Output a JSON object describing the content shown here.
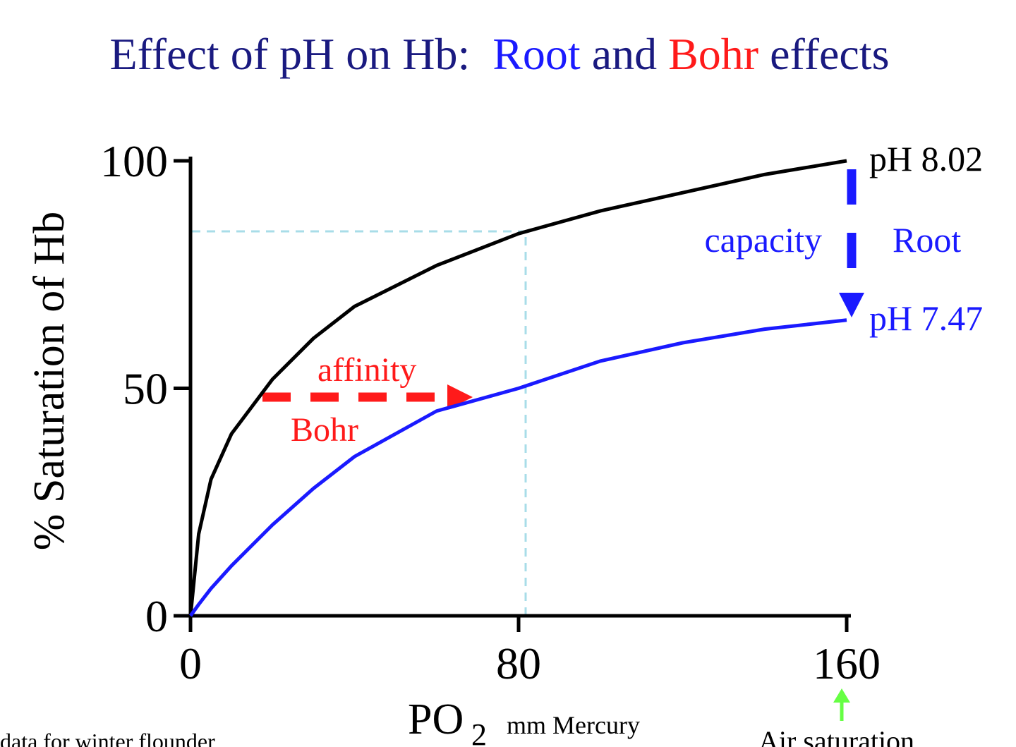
{
  "chart_data": {
    "type": "line",
    "title": [
      "Effect of pH on Hb:  ",
      "Root",
      " and ",
      "Bohr",
      " effects"
    ],
    "title_colors": [
      "#1a1a80",
      "#1a1aff",
      "#1a1a80",
      "#ff1a1a",
      "#1a1a80"
    ],
    "x_label": "PO",
    "x_label_subscript": "2",
    "x_label_units": "mm Mercury",
    "y_label": "% Saturation of Hb",
    "x": [
      0,
      2,
      5,
      10,
      20,
      30,
      40,
      60,
      80,
      100,
      120,
      140,
      160
    ],
    "series": [
      {
        "name": "pH 8.02",
        "color": "#000000",
        "values": [
          0,
          18,
          30,
          40,
          52,
          61,
          68,
          77,
          84,
          89,
          93,
          97,
          100
        ]
      },
      {
        "name": "pH 7.47",
        "color": "#1a1aff",
        "values": [
          0,
          2.5,
          6,
          11,
          20,
          28,
          35,
          45,
          50,
          56,
          60,
          63,
          65
        ]
      }
    ],
    "xlim": [
      0,
      160
    ],
    "xticks": [
      0,
      80,
      160
    ],
    "ylim": [
      0,
      100
    ],
    "yticks": [
      0,
      50,
      100
    ],
    "annotations": {
      "capacity": "capacity",
      "root": "Root",
      "affinity": "affinity",
      "bohr": "Bohr",
      "air_saturation": "Air saturation",
      "source": "data for winter flounder"
    }
  }
}
